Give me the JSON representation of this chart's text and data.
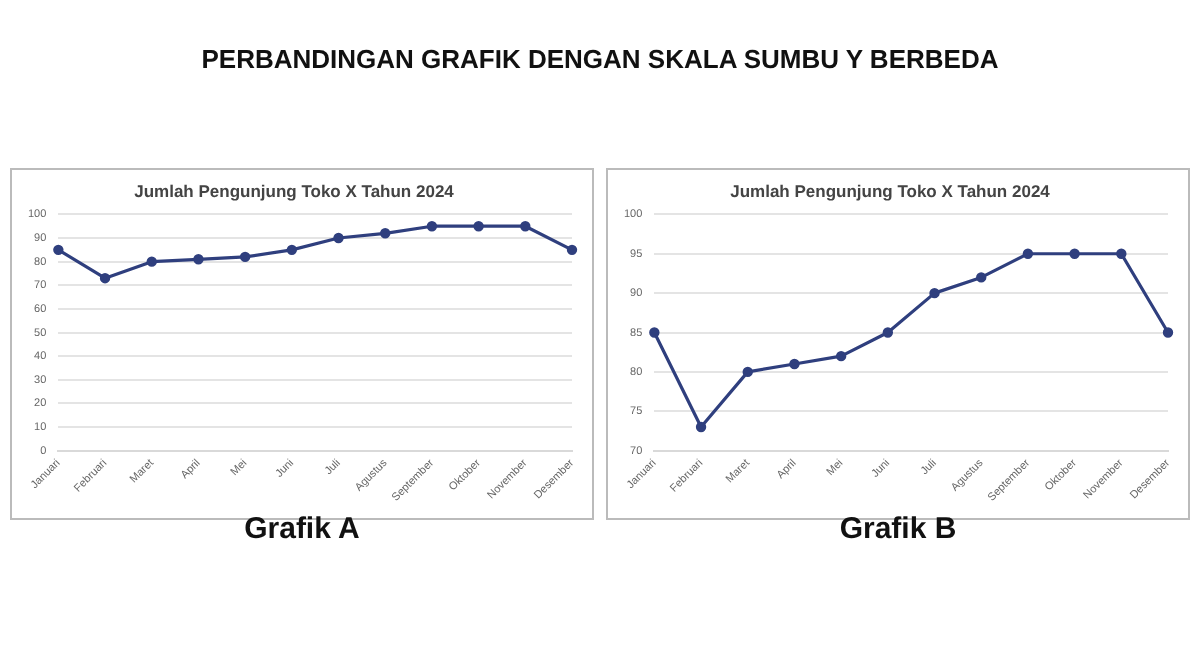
{
  "chart_data": [
    {
      "type": "other",
      "title": "PERBANDINGAN GRAFIK DENGAN SKALA SUMBU Y BERBEDA"
    },
    {
      "type": "line",
      "title": "Jumlah Pengunjung Toko X Tahun 2024",
      "categories": [
        "Januari",
        "Februari",
        "Maret",
        "April",
        "Mei",
        "Juni",
        "Juli",
        "Agustus",
        "September",
        "Oktober",
        "November",
        "Desember"
      ],
      "series": [
        {
          "color": "#2f3f7e",
          "values": [
            85,
            73,
            80,
            81,
            82,
            85,
            90,
            92,
            95,
            95,
            95,
            85
          ]
        }
      ],
      "ylim": [
        0,
        100
      ],
      "yticks": [
        0,
        10,
        20,
        30,
        40,
        50,
        60,
        70,
        80,
        90,
        100
      ],
      "grid": "y",
      "marker": "circle",
      "annotations": [
        "Grafik A"
      ]
    },
    {
      "type": "line",
      "title": "Jumlah Pengunjung Toko X Tahun 2024",
      "categories": [
        "Januari",
        "Februari",
        "Maret",
        "April",
        "Mei",
        "Juni",
        "Juli",
        "Agustus",
        "September",
        "Oktober",
        "November",
        "Desember"
      ],
      "series": [
        {
          "color": "#2f3f7e",
          "values": [
            85,
            73,
            80,
            81,
            82,
            85,
            90,
            92,
            95,
            95,
            95,
            85
          ]
        }
      ],
      "ylim": [
        70,
        100
      ],
      "yticks": [
        70,
        75,
        80,
        85,
        90,
        95,
        100
      ],
      "grid": "y",
      "marker": "circle",
      "annotations": [
        "Grafik B"
      ]
    }
  ]
}
